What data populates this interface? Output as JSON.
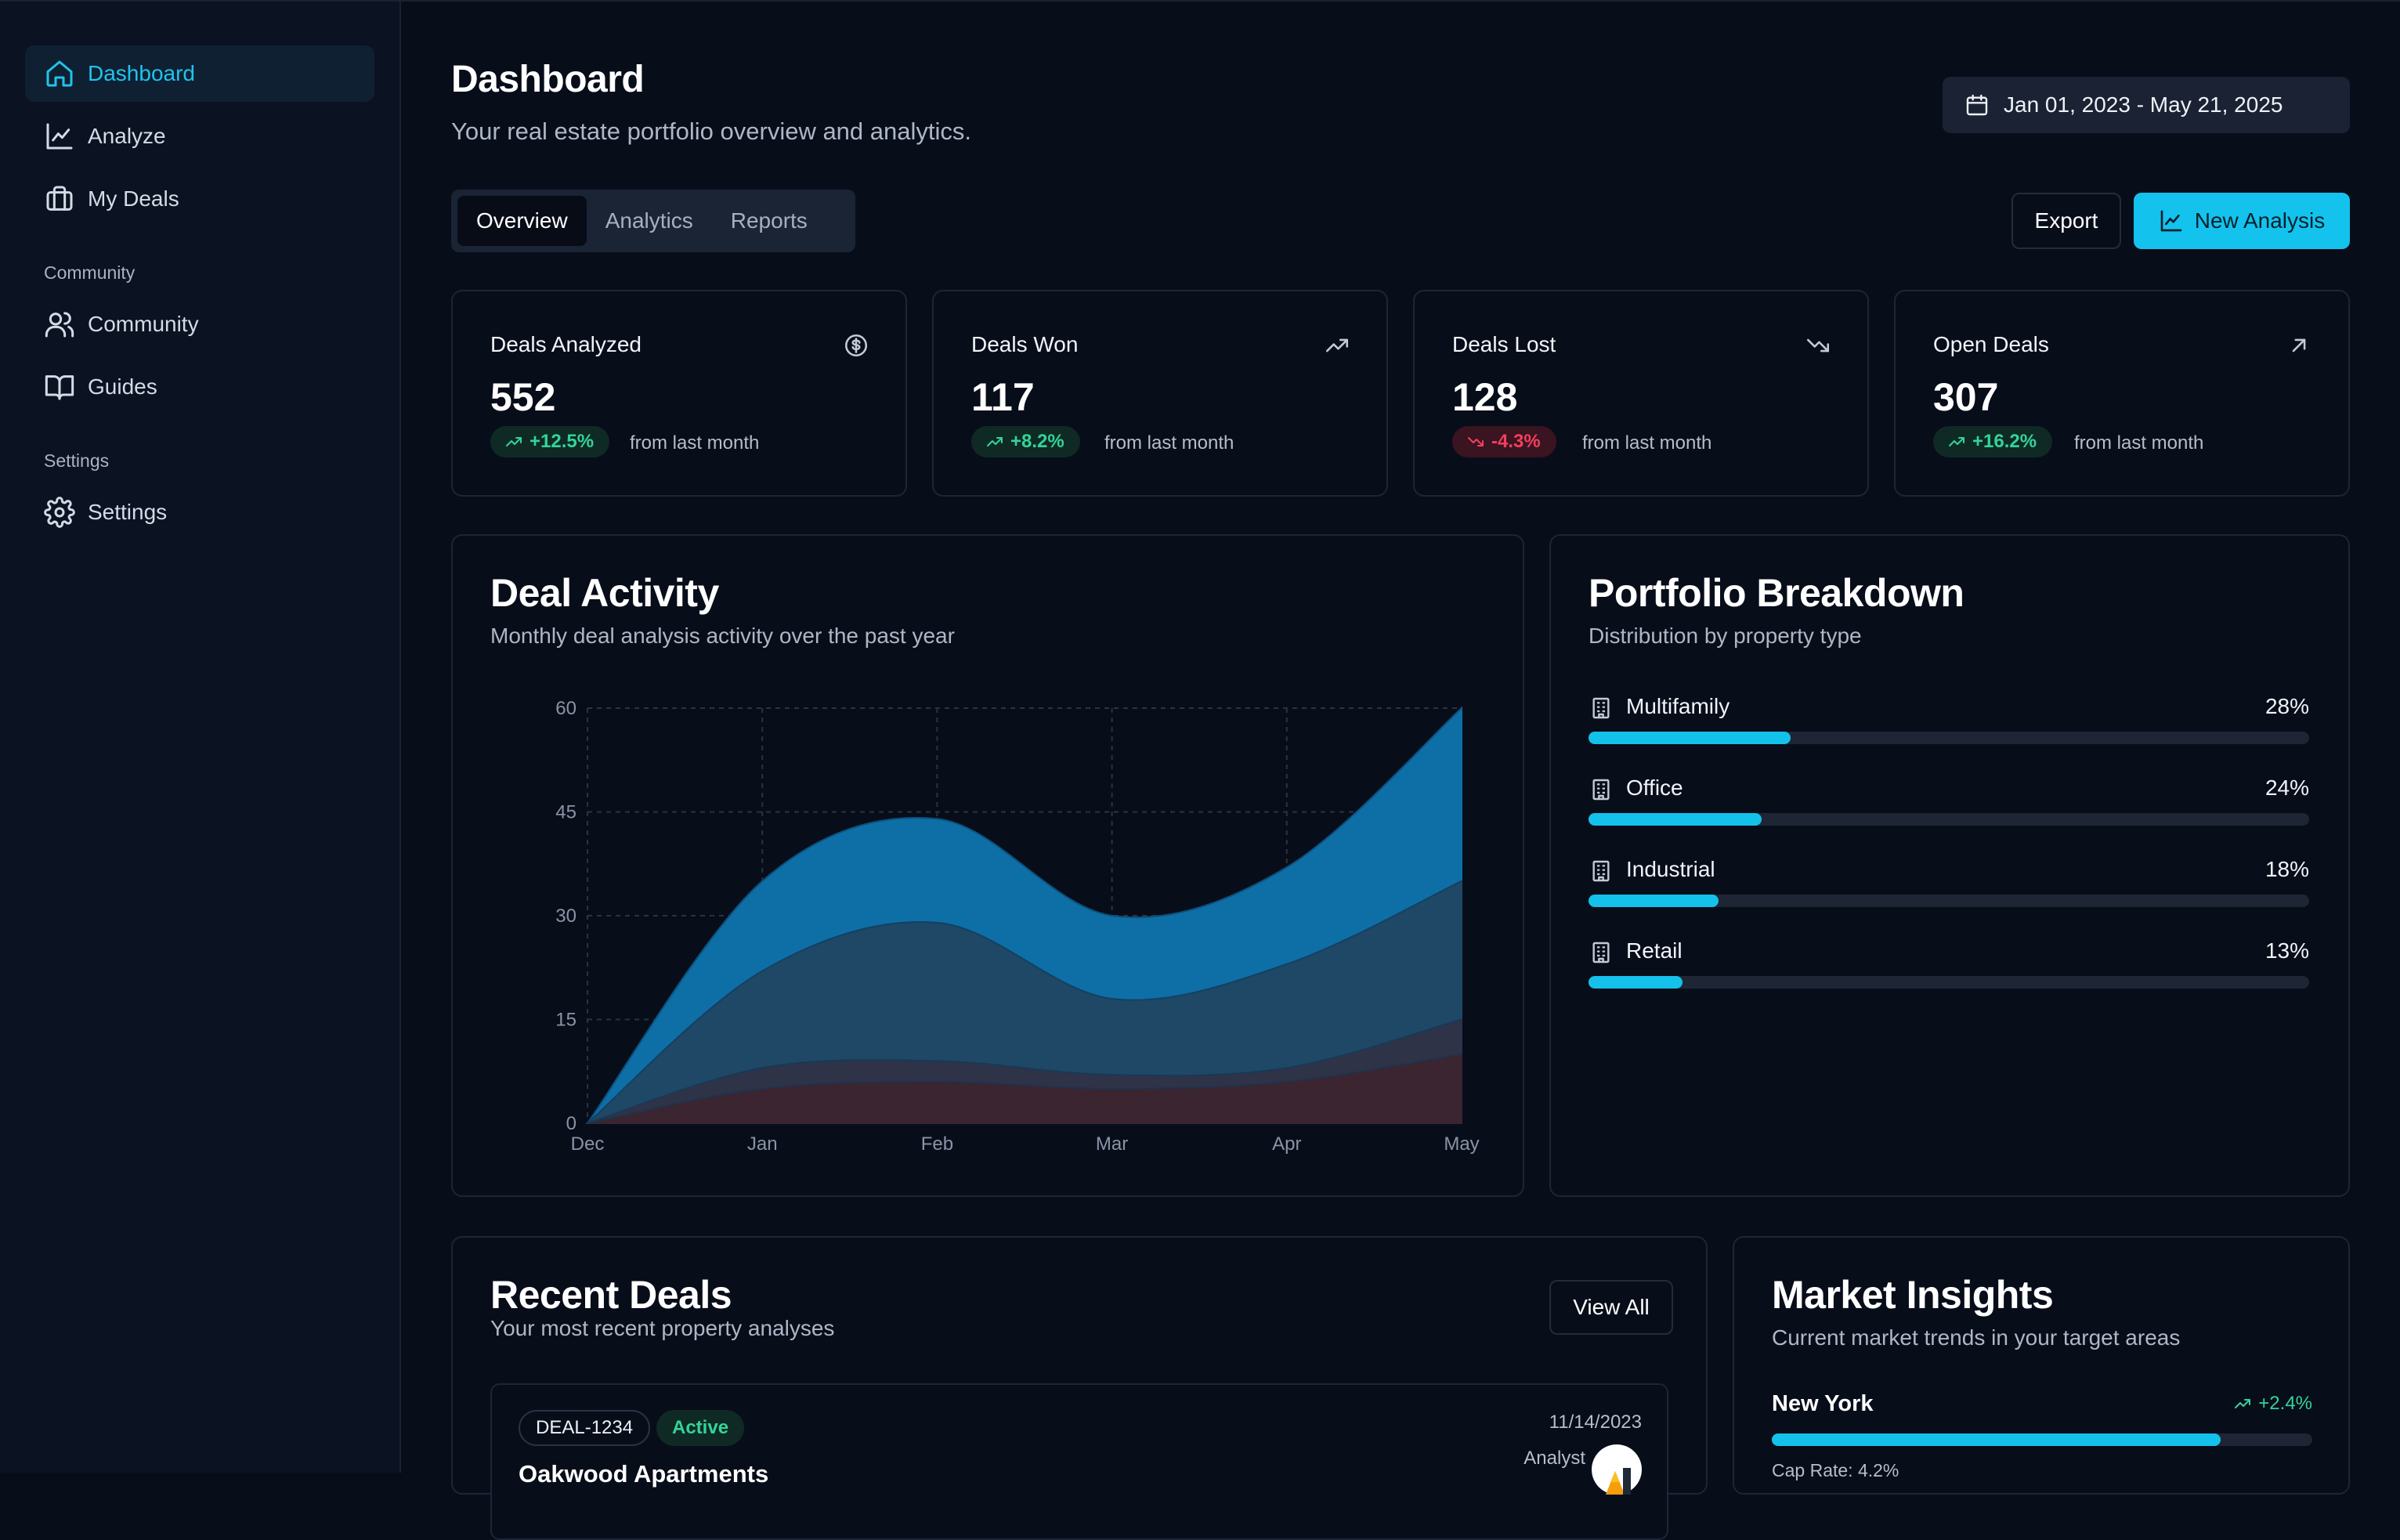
{
  "colors": {
    "accent": "#13c3ee",
    "positive": "#34d399",
    "negative": "#f43f5e",
    "background": "#080d1a"
  },
  "sidebar": {
    "items": [
      {
        "label": "Dashboard",
        "icon": "home-icon",
        "active": true
      },
      {
        "label": "Analyze",
        "icon": "line-chart-icon"
      },
      {
        "label": "My Deals",
        "icon": "briefcase-icon"
      }
    ],
    "community_section": "Community",
    "community_items": [
      {
        "label": "Community",
        "icon": "users-icon"
      },
      {
        "label": "Guides",
        "icon": "book-icon"
      }
    ],
    "settings_section": "Settings",
    "settings_items": [
      {
        "label": "Settings",
        "icon": "gear-icon"
      }
    ]
  },
  "header": {
    "title": "Dashboard",
    "subtitle": "Your real estate portfolio overview and analytics.",
    "date_range": "Jan 01, 2023 - May 21, 2025"
  },
  "tabs": [
    {
      "label": "Overview",
      "active": true
    },
    {
      "label": "Analytics"
    },
    {
      "label": "Reports"
    }
  ],
  "toolbar": {
    "export_label": "Export",
    "new_analysis_label": "New Analysis"
  },
  "stats": [
    {
      "label": "Deals Analyzed",
      "value": "552",
      "change": "+12.5%",
      "trend": "up",
      "note": "from last month",
      "icon": "dollar-circle-icon"
    },
    {
      "label": "Deals Won",
      "value": "117",
      "change": "+8.2%",
      "trend": "up",
      "note": "from last month",
      "icon": "trending-up-icon"
    },
    {
      "label": "Deals Lost",
      "value": "128",
      "change": "-4.3%",
      "trend": "down",
      "note": "from last month",
      "icon": "trending-down-icon"
    },
    {
      "label": "Open Deals",
      "value": "307",
      "change": "+16.2%",
      "trend": "up",
      "note": "from last month",
      "icon": "arrow-up-right-icon"
    }
  ],
  "deal_activity": {
    "title": "Deal Activity",
    "subtitle": "Monthly deal analysis activity over the past year"
  },
  "chart_data": {
    "type": "area",
    "stacked": true,
    "x": [
      "Dec",
      "Jan",
      "Feb",
      "Mar",
      "Apr",
      "May"
    ],
    "y_ticks": [
      0,
      15,
      30,
      45,
      60
    ],
    "ylim": [
      0,
      60
    ],
    "grid": true,
    "series": [
      {
        "values": [
          0,
          5,
          6,
          5,
          6,
          10
        ],
        "color": "#3b2530"
      },
      {
        "values": [
          0,
          3,
          3,
          2,
          2,
          5
        ],
        "color": "#2e3348"
      },
      {
        "values": [
          0,
          14,
          20,
          11,
          15,
          20
        ],
        "color": "#1e4866"
      },
      {
        "values": [
          0,
          13,
          15,
          12,
          14,
          25
        ],
        "color": "#0e6fa6"
      }
    ]
  },
  "portfolio": {
    "title": "Portfolio Breakdown",
    "subtitle": "Distribution by property type",
    "items": [
      {
        "name": "Multifamily",
        "percent": "28%",
        "fraction": 0.28
      },
      {
        "name": "Office",
        "percent": "24%",
        "fraction": 0.24
      },
      {
        "name": "Industrial",
        "percent": "18%",
        "fraction": 0.18
      },
      {
        "name": "Retail",
        "percent": "13%",
        "fraction": 0.13
      }
    ]
  },
  "recent_deals": {
    "title": "Recent Deals",
    "subtitle": "Your most recent property analyses",
    "view_all_label": "View All",
    "items": [
      {
        "id": "DEAL-1234",
        "status": "Active",
        "name": "Oakwood Apartments",
        "date": "11/14/2023",
        "analyst_label": "Analyst"
      }
    ]
  },
  "market_insights": {
    "title": "Market Insights",
    "subtitle": "Current market trends in your target areas",
    "items": [
      {
        "name": "New York",
        "change": "+2.4%",
        "fraction": 0.83,
        "sub": "Cap Rate: 4.2%"
      }
    ]
  }
}
